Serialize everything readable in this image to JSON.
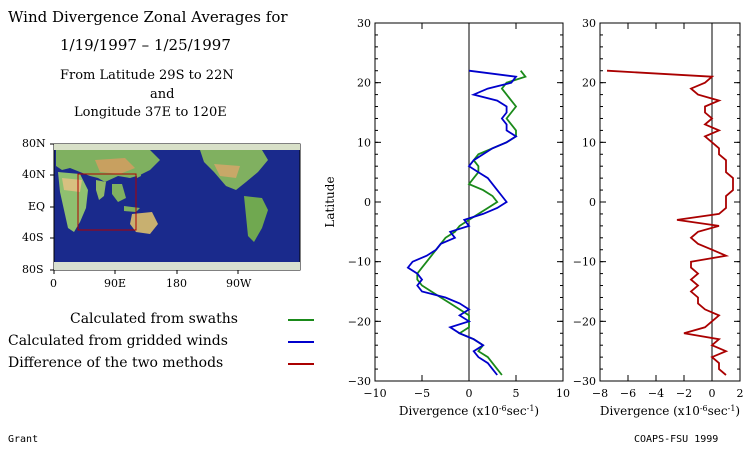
{
  "header": {
    "title_line1": "Wind Divergence Zonal Averages for",
    "title_line2": "1/19/1997 – 1/25/1997",
    "sub_line1": "From Latitude 29S to 22N",
    "sub_line2": "and",
    "sub_line3": "Longitude 37E to 120E"
  },
  "map": {
    "lat_ticks": [
      "80N",
      "40N",
      "EQ",
      "40S",
      "80S"
    ],
    "lon_ticks": [
      "0",
      "90E",
      "180",
      "90W"
    ],
    "box_color": "#b00000",
    "ocean_color": "#1a2a8c"
  },
  "legend": [
    {
      "label": "Calculated from swaths",
      "color": "#1a8a1a"
    },
    {
      "label": "Calculated from gridded winds",
      "color": "#0000cc"
    },
    {
      "label": "Difference of the two methods",
      "color": "#aa0000"
    }
  ],
  "footer": {
    "left": "Grant",
    "right": "COAPS-FSU 1999"
  },
  "chart_data": [
    {
      "type": "line",
      "xlabel_main": "Divergence (x10",
      "xlabel_exp1": "-6",
      "xlabel_mid": "sec",
      "xlabel_exp2": "-1",
      "xlabel_end": ")",
      "ylabel": "Latitude",
      "xlim": [
        -10,
        10
      ],
      "ylim": [
        -30,
        30
      ],
      "xticks": [
        "−10",
        "−5",
        "0",
        "5",
        "10"
      ],
      "yticks": [
        "30",
        "20",
        "10",
        "0",
        "−10",
        "−20",
        "−30"
      ],
      "series": [
        {
          "name": "Calculated from swaths",
          "color": "#1a8a1a",
          "lat": [
            22,
            21,
            20,
            19,
            18,
            17,
            16,
            15,
            14,
            13,
            12,
            11,
            10,
            9,
            8,
            7,
            6,
            5,
            4,
            3,
            2,
            1,
            0,
            -1,
            -2,
            -3,
            -4,
            -5,
            -6,
            -7,
            -8,
            -9,
            -10,
            -11,
            -12,
            -13,
            -14,
            -15,
            -16,
            -17,
            -18,
            -19,
            -20,
            -21,
            -22,
            -23,
            -24,
            -25,
            -26,
            -27,
            -28,
            -29
          ],
          "x": [
            5.5,
            6.0,
            4.0,
            3.5,
            4.0,
            4.5,
            5.0,
            4.5,
            4.0,
            4.5,
            5.0,
            5.0,
            4.0,
            2.5,
            1.0,
            0.5,
            1.0,
            1.0,
            0.5,
            0.0,
            1.5,
            2.5,
            3.0,
            2.0,
            1.0,
            0.0,
            -1.0,
            -1.5,
            -2.5,
            -3.0,
            -3.5,
            -4.0,
            -4.5,
            -5.0,
            -5.5,
            -5.5,
            -5.0,
            -4.0,
            -3.0,
            -2.0,
            -1.0,
            0.0,
            0.0,
            0.0,
            -1.0,
            0.5,
            1.5,
            1.0,
            2.0,
            2.5,
            3.0,
            3.5
          ]
        },
        {
          "name": "Calculated from gridded winds",
          "color": "#0000cc",
          "lat": [
            22,
            21,
            20,
            19,
            18,
            17,
            16,
            15,
            14,
            13,
            12,
            11,
            10,
            9,
            8,
            7,
            6,
            5,
            4,
            3,
            2,
            1,
            0,
            -1,
            -2,
            -3,
            -4,
            -5,
            -6,
            -7,
            -8,
            -9,
            -10,
            -11,
            -12,
            -13,
            -14,
            -15,
            -16,
            -17,
            -18,
            -19,
            -20,
            -21,
            -22,
            -23,
            -24,
            -25,
            -26,
            -27,
            -28,
            -29
          ],
          "x": [
            0.0,
            5.0,
            4.5,
            2.0,
            0.5,
            3.0,
            4.0,
            4.0,
            3.5,
            4.0,
            4.0,
            5.0,
            4.0,
            2.5,
            1.5,
            0.5,
            0.0,
            1.0,
            2.0,
            2.5,
            3.0,
            3.5,
            4.0,
            3.0,
            1.5,
            -0.5,
            0.0,
            -2.0,
            -1.5,
            -3.0,
            -3.5,
            -4.5,
            -6.0,
            -6.5,
            -5.5,
            -5.0,
            -5.5,
            -5.0,
            -2.5,
            -1.0,
            0.0,
            -1.0,
            0.0,
            -2.0,
            -1.0,
            0.5,
            1.5,
            0.5,
            1.0,
            2.0,
            2.5,
            3.0
          ]
        }
      ]
    },
    {
      "type": "line",
      "xlabel_main": "Divergence (x10",
      "xlabel_exp1": "-6",
      "xlabel_mid": "sec",
      "xlabel_exp2": "-1",
      "xlabel_end": ")",
      "xlim": [
        -8,
        2
      ],
      "ylim": [
        -30,
        30
      ],
      "xticks": [
        "−8",
        "−6",
        "−4",
        "−2",
        "0",
        "2"
      ],
      "yticks": [
        "30",
        "20",
        "10",
        "0",
        "−10",
        "−20",
        "−30"
      ],
      "series": [
        {
          "name": "Difference of the two methods",
          "color": "#aa0000",
          "lat": [
            22,
            21,
            20,
            19,
            18,
            17,
            16,
            15,
            14,
            13,
            12,
            11,
            10,
            9,
            8,
            7,
            6,
            5,
            4,
            3,
            2,
            1,
            0,
            -1,
            -2,
            -3,
            -4,
            -5,
            -6,
            -7,
            -8,
            -9,
            -10,
            -11,
            -12,
            -13,
            -14,
            -15,
            -16,
            -17,
            -18,
            -19,
            -20,
            -21,
            -22,
            -23,
            -24,
            -25,
            -26,
            -27,
            -28,
            -29
          ],
          "x": [
            -7.5,
            0.0,
            -0.5,
            -1.5,
            -1.0,
            0.5,
            -0.5,
            -0.5,
            0.0,
            -0.5,
            0.5,
            -0.5,
            0.0,
            0.5,
            0.5,
            1.0,
            1.0,
            1.0,
            1.5,
            1.5,
            1.5,
            1.0,
            1.0,
            1.0,
            0.5,
            -2.5,
            0.5,
            -1.0,
            -1.5,
            -1.0,
            0.0,
            1.0,
            -1.5,
            -1.5,
            -1.0,
            -1.5,
            -1.0,
            -1.5,
            -1.0,
            -1.0,
            -0.5,
            0.5,
            0.0,
            -0.5,
            -2.0,
            0.5,
            0.0,
            1.0,
            0.0,
            0.5,
            0.5,
            1.0
          ]
        }
      ]
    }
  ]
}
